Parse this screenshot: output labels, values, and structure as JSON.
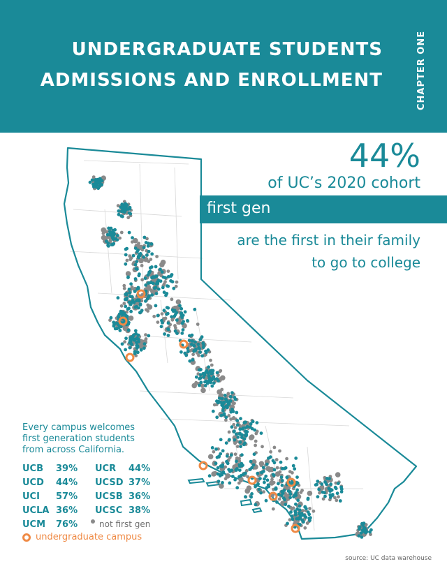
{
  "header": {
    "title_line1": "UNDERGRADUATE STUDENTS",
    "title_line2": "ADMISSIONS AND ENROLLMENT",
    "chapter": "CHAPTER ONE"
  },
  "stat": {
    "percent": "44%",
    "subtitle": "of UC’s 2020 cohort",
    "band_label": "first gen",
    "desc_line1": "are the first in their family",
    "desc_line2": "to go to college"
  },
  "intro": {
    "line1": "Every campus welcomes",
    "line2": "first generation students",
    "line3": "from across California."
  },
  "campus_rates": [
    [
      {
        "code": "UCB",
        "pct": "39%"
      },
      {
        "code": "UCR",
        "pct": "44%"
      }
    ],
    [
      {
        "code": "UCD",
        "pct": "44%"
      },
      {
        "code": "UCSD",
        "pct": "37%"
      }
    ],
    [
      {
        "code": "UCI",
        "pct": "57%"
      },
      {
        "code": "UCSB",
        "pct": "36%"
      }
    ],
    [
      {
        "code": "UCLA",
        "pct": "36%"
      },
      {
        "code": "UCSC",
        "pct": "38%"
      }
    ]
  ],
  "last_rate": {
    "code": "UCM",
    "pct": "76%"
  },
  "legend": {
    "not_first_gen": "not first gen",
    "campus": "undergraduate campus"
  },
  "source": "source: UC data warehouse",
  "colors": {
    "teal": "#1a8a98",
    "grey": "#8a8a8a",
    "orange": "#ef8a45"
  }
}
